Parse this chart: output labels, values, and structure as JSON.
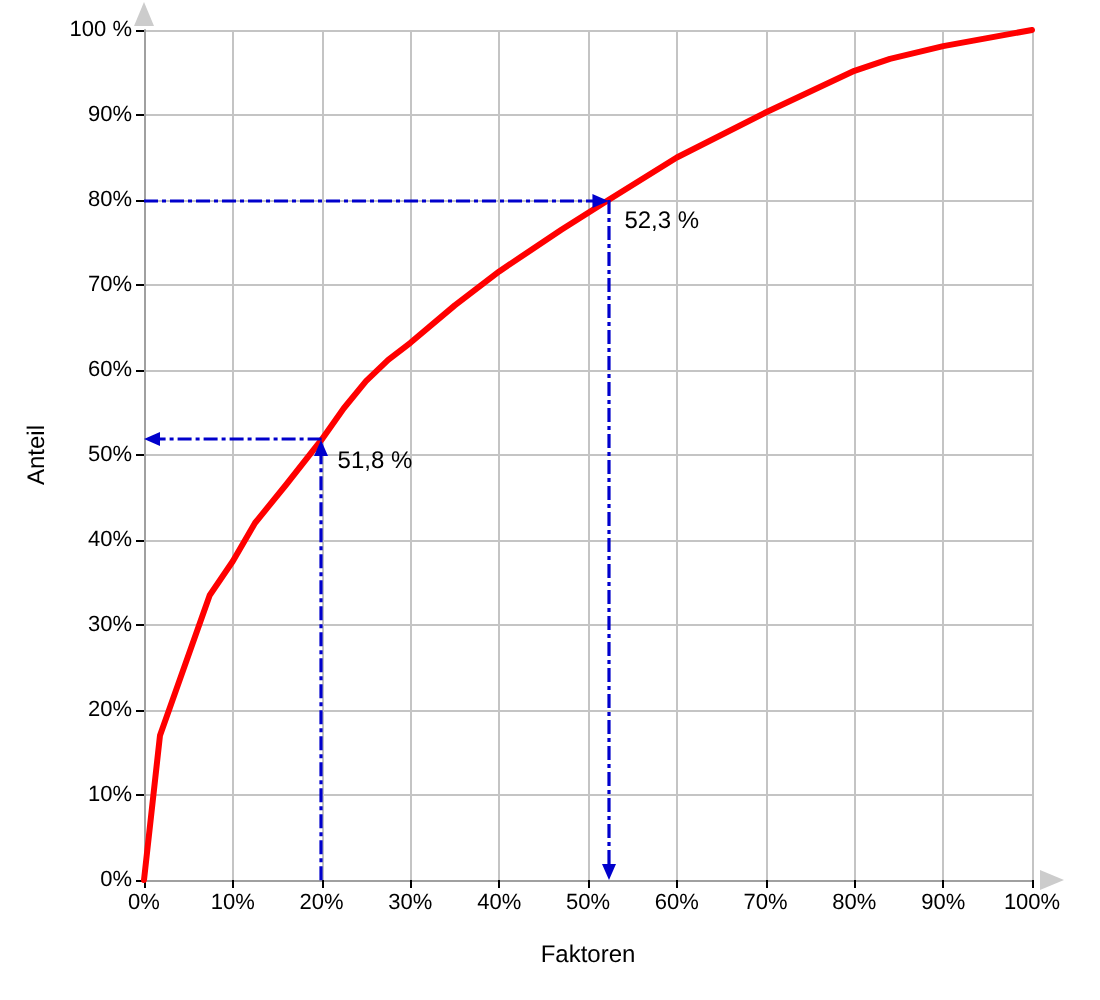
{
  "chart_data": {
    "type": "line",
    "xlabel": "Faktoren",
    "ylabel": "Anteil",
    "xlim": [
      0,
      100
    ],
    "ylim": [
      0,
      100
    ],
    "xticks": [
      {
        "value": 0,
        "label": "0%"
      },
      {
        "value": 10,
        "label": "10%"
      },
      {
        "value": 20,
        "label": "20%"
      },
      {
        "value": 30,
        "label": "30%"
      },
      {
        "value": 40,
        "label": "40%"
      },
      {
        "value": 50,
        "label": "50%"
      },
      {
        "value": 60,
        "label": "60%"
      },
      {
        "value": 70,
        "label": "70%"
      },
      {
        "value": 80,
        "label": "80%"
      },
      {
        "value": 90,
        "label": "90%"
      },
      {
        "value": 100,
        "label": "100%"
      }
    ],
    "yticks": [
      {
        "value": 0,
        "label": "0%"
      },
      {
        "value": 10,
        "label": "10%"
      },
      {
        "value": 20,
        "label": "20%"
      },
      {
        "value": 30,
        "label": "30%"
      },
      {
        "value": 40,
        "label": "40%"
      },
      {
        "value": 50,
        "label": "50%"
      },
      {
        "value": 60,
        "label": "60%"
      },
      {
        "value": 70,
        "label": "70%"
      },
      {
        "value": 80,
        "label": "80%"
      },
      {
        "value": 90,
        "label": "90%"
      },
      {
        "value": 100,
        "label": "100 %"
      }
    ],
    "grid": true,
    "marker": "none",
    "line_style": "solid",
    "series": [
      {
        "color": "#ff0000",
        "x": [
          0,
          1.8,
          7.4,
          10,
          12.5,
          16,
          20,
          22.5,
          25,
          27.5,
          30,
          35,
          40,
          47,
          52.3,
          60,
          70,
          80,
          84,
          90,
          100
        ],
        "values": [
          0,
          17,
          33.5,
          37.5,
          42,
          46.5,
          51.8,
          55.5,
          58.7,
          61.2,
          63.2,
          67.6,
          71.6,
          76.5,
          80,
          85,
          90.3,
          95.2,
          96.6,
          98.1,
          100
        ]
      }
    ],
    "ref_lines": [
      {
        "axis": "x",
        "value": 20,
        "color": "#0000cc",
        "line_style": "dashed"
      },
      {
        "axis": "y",
        "value": 80,
        "color": "#0000cc",
        "line_style": "dashed"
      }
    ],
    "annotations": [
      {
        "text": "51,8 %",
        "x": 20,
        "y": 51.8
      },
      {
        "text": "52,3 %",
        "x": 52.3,
        "y": 80
      }
    ]
  }
}
